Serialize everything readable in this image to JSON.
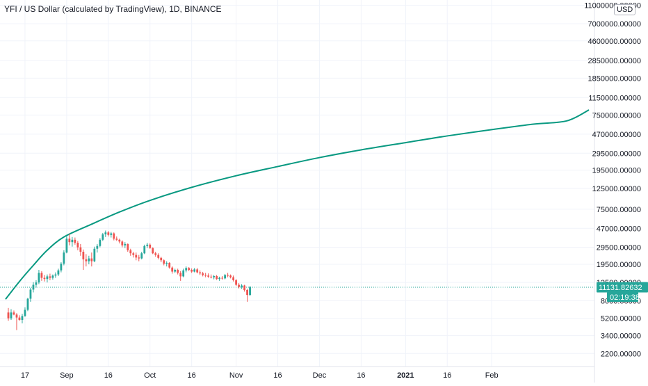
{
  "chart_data": {
    "type": "candlestick",
    "title": "YFI / US Dollar (calculated by TradingView), 1D, BINANCE",
    "currency": "USD",
    "y_scale": "log",
    "ylim": [
      1600,
      12500000
    ],
    "xlim": [
      "2020-08-08",
      "2021-03-10"
    ],
    "y_tick_labels": [
      {
        "value": 11000000,
        "label": "11000000.00000"
      },
      {
        "value": 7000000,
        "label": "7000000.00000"
      },
      {
        "value": 4600000,
        "label": "4600000.00000"
      },
      {
        "value": 2850000,
        "label": "2850000.00000"
      },
      {
        "value": 1850000,
        "label": "1850000.00000"
      },
      {
        "value": 1150000,
        "label": "1150000.00000"
      },
      {
        "value": 750000,
        "label": "750000.00000"
      },
      {
        "value": 470000,
        "label": "470000.00000"
      },
      {
        "value": 295000,
        "label": "295000.00000"
      },
      {
        "value": 195000,
        "label": "195000.00000"
      },
      {
        "value": 125000,
        "label": "125000.00000"
      },
      {
        "value": 75000,
        "label": "75000.00000"
      },
      {
        "value": 47000,
        "label": "47000.00000"
      },
      {
        "value": 29500,
        "label": "29500.00000"
      },
      {
        "value": 19500,
        "label": "19500.00000"
      },
      {
        "value": 12500,
        "label": "12500.00000"
      },
      {
        "value": 8000,
        "label": "8000.00000"
      },
      {
        "value": 5200,
        "label": "5200.00000"
      },
      {
        "value": 3400,
        "label": "3400.00000"
      },
      {
        "value": 2200,
        "label": "2200.00000"
      }
    ],
    "x_tick_labels": [
      {
        "date": "2020-08-17",
        "label": "17"
      },
      {
        "date": "2020-09-01",
        "label": "Sep"
      },
      {
        "date": "2020-09-16",
        "label": "16"
      },
      {
        "date": "2020-10-01",
        "label": "Oct"
      },
      {
        "date": "2020-10-16",
        "label": "16"
      },
      {
        "date": "2020-11-01",
        "label": "Nov"
      },
      {
        "date": "2020-11-16",
        "label": "16"
      },
      {
        "date": "2020-12-01",
        "label": "Dec"
      },
      {
        "date": "2020-12-16",
        "label": "16"
      },
      {
        "date": "2021-01-01",
        "label": "2021"
      },
      {
        "date": "2021-01-16",
        "label": "16"
      },
      {
        "date": "2021-02-01",
        "label": "Feb"
      }
    ],
    "last_price": {
      "value": 11131.82632,
      "label": "11131.82632",
      "countdown": "02:19:38"
    },
    "colors": {
      "up": "#26a69a",
      "down": "#ef5350",
      "curve": "#089981",
      "last_price": "#26a69a",
      "axis_text": "#131722"
    },
    "candles": [
      {
        "date": "2020-08-11",
        "o": 6000,
        "h": 6700,
        "l": 4900,
        "c": 5200
      },
      {
        "date": "2020-08-12",
        "o": 5200,
        "h": 6500,
        "l": 5000,
        "c": 6000
      },
      {
        "date": "2020-08-13",
        "o": 6000,
        "h": 6300,
        "l": 5600,
        "c": 5700
      },
      {
        "date": "2020-08-14",
        "o": 5700,
        "h": 5900,
        "l": 3900,
        "c": 5300
      },
      {
        "date": "2020-08-15",
        "o": 5300,
        "h": 5600,
        "l": 4900,
        "c": 5000
      },
      {
        "date": "2020-08-16",
        "o": 5000,
        "h": 5800,
        "l": 4600,
        "c": 5500
      },
      {
        "date": "2020-08-17",
        "o": 5500,
        "h": 6800,
        "l": 5400,
        "c": 6400
      },
      {
        "date": "2020-08-18",
        "o": 6400,
        "h": 8600,
        "l": 6200,
        "c": 8400
      },
      {
        "date": "2020-08-19",
        "o": 8400,
        "h": 11000,
        "l": 7800,
        "c": 10500
      },
      {
        "date": "2020-08-20",
        "o": 10500,
        "h": 12600,
        "l": 9800,
        "c": 11800
      },
      {
        "date": "2020-08-21",
        "o": 11800,
        "h": 13200,
        "l": 11000,
        "c": 12500
      },
      {
        "date": "2020-08-22",
        "o": 12500,
        "h": 17000,
        "l": 12000,
        "c": 15800
      },
      {
        "date": "2020-08-23",
        "o": 15800,
        "h": 16500,
        "l": 13000,
        "c": 14000
      },
      {
        "date": "2020-08-24",
        "o": 14000,
        "h": 15000,
        "l": 12800,
        "c": 13600
      },
      {
        "date": "2020-08-25",
        "o": 13600,
        "h": 15200,
        "l": 12500,
        "c": 14500
      },
      {
        "date": "2020-08-26",
        "o": 14500,
        "h": 15500,
        "l": 13200,
        "c": 14000
      },
      {
        "date": "2020-08-27",
        "o": 14000,
        "h": 15200,
        "l": 13400,
        "c": 14800
      },
      {
        "date": "2020-08-28",
        "o": 14800,
        "h": 16000,
        "l": 14000,
        "c": 15200
      },
      {
        "date": "2020-08-29",
        "o": 15200,
        "h": 17500,
        "l": 14600,
        "c": 16800
      },
      {
        "date": "2020-08-30",
        "o": 16800,
        "h": 20500,
        "l": 16000,
        "c": 19800
      },
      {
        "date": "2020-08-31",
        "o": 19800,
        "h": 27500,
        "l": 19000,
        "c": 26000
      },
      {
        "date": "2020-09-01",
        "o": 26000,
        "h": 38500,
        "l": 25500,
        "c": 36500
      },
      {
        "date": "2020-09-02",
        "o": 36500,
        "h": 41000,
        "l": 31000,
        "c": 33500
      },
      {
        "date": "2020-09-03",
        "o": 33500,
        "h": 38000,
        "l": 30000,
        "c": 35500
      },
      {
        "date": "2020-09-04",
        "o": 35500,
        "h": 37500,
        "l": 31500,
        "c": 33000
      },
      {
        "date": "2020-09-05",
        "o": 33000,
        "h": 34500,
        "l": 27500,
        "c": 29500
      },
      {
        "date": "2020-09-06",
        "o": 29500,
        "h": 32000,
        "l": 24000,
        "c": 26500
      },
      {
        "date": "2020-09-07",
        "o": 26500,
        "h": 28000,
        "l": 17000,
        "c": 22000
      },
      {
        "date": "2020-09-08",
        "o": 22000,
        "h": 25000,
        "l": 18500,
        "c": 21000
      },
      {
        "date": "2020-09-09",
        "o": 21000,
        "h": 24000,
        "l": 19500,
        "c": 22500
      },
      {
        "date": "2020-09-10",
        "o": 22500,
        "h": 26000,
        "l": 18500,
        "c": 21000
      },
      {
        "date": "2020-09-11",
        "o": 21000,
        "h": 30000,
        "l": 20500,
        "c": 28500
      },
      {
        "date": "2020-09-12",
        "o": 28500,
        "h": 32000,
        "l": 26000,
        "c": 30500
      },
      {
        "date": "2020-09-13",
        "o": 30500,
        "h": 37000,
        "l": 29500,
        "c": 35500
      },
      {
        "date": "2020-09-14",
        "o": 35500,
        "h": 42000,
        "l": 34500,
        "c": 40500
      },
      {
        "date": "2020-09-15",
        "o": 40500,
        "h": 44500,
        "l": 38000,
        "c": 42500
      },
      {
        "date": "2020-09-16",
        "o": 42500,
        "h": 44000,
        "l": 38500,
        "c": 40000
      },
      {
        "date": "2020-09-17",
        "o": 40000,
        "h": 43000,
        "l": 37500,
        "c": 41500
      },
      {
        "date": "2020-09-18",
        "o": 41500,
        "h": 42500,
        "l": 35000,
        "c": 36500
      },
      {
        "date": "2020-09-19",
        "o": 36500,
        "h": 38500,
        "l": 34500,
        "c": 35500
      },
      {
        "date": "2020-09-20",
        "o": 35500,
        "h": 36500,
        "l": 32500,
        "c": 34000
      },
      {
        "date": "2020-09-21",
        "o": 34000,
        "h": 35000,
        "l": 29500,
        "c": 31000
      },
      {
        "date": "2020-09-22",
        "o": 31000,
        "h": 33500,
        "l": 29000,
        "c": 32000
      },
      {
        "date": "2020-09-23",
        "o": 32000,
        "h": 32500,
        "l": 26500,
        "c": 27500
      },
      {
        "date": "2020-09-24",
        "o": 27500,
        "h": 28500,
        "l": 24000,
        "c": 25500
      },
      {
        "date": "2020-09-25",
        "o": 25500,
        "h": 26500,
        "l": 23000,
        "c": 24500
      },
      {
        "date": "2020-09-26",
        "o": 24500,
        "h": 26000,
        "l": 21500,
        "c": 23000
      },
      {
        "date": "2020-09-27",
        "o": 23000,
        "h": 24500,
        "l": 21000,
        "c": 22500
      },
      {
        "date": "2020-09-28",
        "o": 22500,
        "h": 26500,
        "l": 22000,
        "c": 25500
      },
      {
        "date": "2020-09-29",
        "o": 25500,
        "h": 31500,
        "l": 25000,
        "c": 30500
      },
      {
        "date": "2020-09-30",
        "o": 30500,
        "h": 33000,
        "l": 29000,
        "c": 31500
      },
      {
        "date": "2020-10-01",
        "o": 31500,
        "h": 32500,
        "l": 28500,
        "c": 29000
      },
      {
        "date": "2020-10-02",
        "o": 29000,
        "h": 29500,
        "l": 25000,
        "c": 25500
      },
      {
        "date": "2020-10-03",
        "o": 25500,
        "h": 26500,
        "l": 23500,
        "c": 24500
      },
      {
        "date": "2020-10-04",
        "o": 24500,
        "h": 25500,
        "l": 22000,
        "c": 22800
      },
      {
        "date": "2020-10-05",
        "o": 22800,
        "h": 23500,
        "l": 20500,
        "c": 21500
      },
      {
        "date": "2020-10-06",
        "o": 21500,
        "h": 22000,
        "l": 19000,
        "c": 19800
      },
      {
        "date": "2020-10-07",
        "o": 19800,
        "h": 21000,
        "l": 18500,
        "c": 20200
      },
      {
        "date": "2020-10-08",
        "o": 20200,
        "h": 20500,
        "l": 17500,
        "c": 18000
      },
      {
        "date": "2020-10-09",
        "o": 18000,
        "h": 18500,
        "l": 15500,
        "c": 16300
      },
      {
        "date": "2020-10-10",
        "o": 16300,
        "h": 17500,
        "l": 15800,
        "c": 17000
      },
      {
        "date": "2020-10-11",
        "o": 17000,
        "h": 17500,
        "l": 15200,
        "c": 15800
      },
      {
        "date": "2020-10-12",
        "o": 15800,
        "h": 16500,
        "l": 13000,
        "c": 14500
      },
      {
        "date": "2020-10-13",
        "o": 14500,
        "h": 17500,
        "l": 14200,
        "c": 16800
      },
      {
        "date": "2020-10-14",
        "o": 16800,
        "h": 18500,
        "l": 16000,
        "c": 17800
      },
      {
        "date": "2020-10-15",
        "o": 17800,
        "h": 18200,
        "l": 16500,
        "c": 17000
      },
      {
        "date": "2020-10-16",
        "o": 17000,
        "h": 17600,
        "l": 15800,
        "c": 16300
      },
      {
        "date": "2020-10-17",
        "o": 16300,
        "h": 17800,
        "l": 16000,
        "c": 17200
      },
      {
        "date": "2020-10-18",
        "o": 17200,
        "h": 17800,
        "l": 15600,
        "c": 16000
      },
      {
        "date": "2020-10-19",
        "o": 16000,
        "h": 16800,
        "l": 15000,
        "c": 15600
      },
      {
        "date": "2020-10-20",
        "o": 15600,
        "h": 16200,
        "l": 14500,
        "c": 15000
      },
      {
        "date": "2020-10-21",
        "o": 15000,
        "h": 15800,
        "l": 14200,
        "c": 14800
      },
      {
        "date": "2020-10-22",
        "o": 14800,
        "h": 15600,
        "l": 14000,
        "c": 14400
      },
      {
        "date": "2020-10-23",
        "o": 14400,
        "h": 15200,
        "l": 13800,
        "c": 14200
      },
      {
        "date": "2020-10-24",
        "o": 14200,
        "h": 15000,
        "l": 13500,
        "c": 14600
      },
      {
        "date": "2020-10-25",
        "o": 14600,
        "h": 15000,
        "l": 13300,
        "c": 13600
      },
      {
        "date": "2020-10-26",
        "o": 13600,
        "h": 14400,
        "l": 13000,
        "c": 14000
      },
      {
        "date": "2020-10-27",
        "o": 14000,
        "h": 14600,
        "l": 13400,
        "c": 13800
      },
      {
        "date": "2020-10-28",
        "o": 13800,
        "h": 15400,
        "l": 13500,
        "c": 15000
      },
      {
        "date": "2020-10-29",
        "o": 15000,
        "h": 15800,
        "l": 14200,
        "c": 14800
      },
      {
        "date": "2020-10-30",
        "o": 14800,
        "h": 15200,
        "l": 13800,
        "c": 14200
      },
      {
        "date": "2020-10-31",
        "o": 14200,
        "h": 14800,
        "l": 12800,
        "c": 13200
      },
      {
        "date": "2020-11-01",
        "o": 13200,
        "h": 13600,
        "l": 11500,
        "c": 11800
      },
      {
        "date": "2020-11-02",
        "o": 11800,
        "h": 12300,
        "l": 10800,
        "c": 11200
      },
      {
        "date": "2020-11-03",
        "o": 11200,
        "h": 12000,
        "l": 10700,
        "c": 11600
      },
      {
        "date": "2020-11-04",
        "o": 11600,
        "h": 11800,
        "l": 10000,
        "c": 10400
      },
      {
        "date": "2020-11-05",
        "o": 10400,
        "h": 10700,
        "l": 7800,
        "c": 9200
      },
      {
        "date": "2020-11-06",
        "o": 9200,
        "h": 11500,
        "l": 9000,
        "c": 11131.82632
      }
    ],
    "curve": {
      "name": "",
      "points": [
        {
          "date": "2020-08-10",
          "value": 8300
        },
        {
          "date": "2020-08-15",
          "value": 12800
        },
        {
          "date": "2020-08-20",
          "value": 19000
        },
        {
          "date": "2020-08-25",
          "value": 27500
        },
        {
          "date": "2020-08-31",
          "value": 38000
        },
        {
          "date": "2020-09-10",
          "value": 52000
        },
        {
          "date": "2020-09-20",
          "value": 70000
        },
        {
          "date": "2020-10-01",
          "value": 93000
        },
        {
          "date": "2020-10-16",
          "value": 128000
        },
        {
          "date": "2020-11-01",
          "value": 170000
        },
        {
          "date": "2020-11-16",
          "value": 213000
        },
        {
          "date": "2020-12-01",
          "value": 265000
        },
        {
          "date": "2020-12-16",
          "value": 320000
        },
        {
          "date": "2021-01-01",
          "value": 382000
        },
        {
          "date": "2021-01-16",
          "value": 450000
        },
        {
          "date": "2021-02-01",
          "value": 525000
        },
        {
          "date": "2021-02-16",
          "value": 600000
        },
        {
          "date": "2021-02-28",
          "value": 650000
        },
        {
          "date": "2021-03-08",
          "value": 850000
        }
      ]
    }
  }
}
